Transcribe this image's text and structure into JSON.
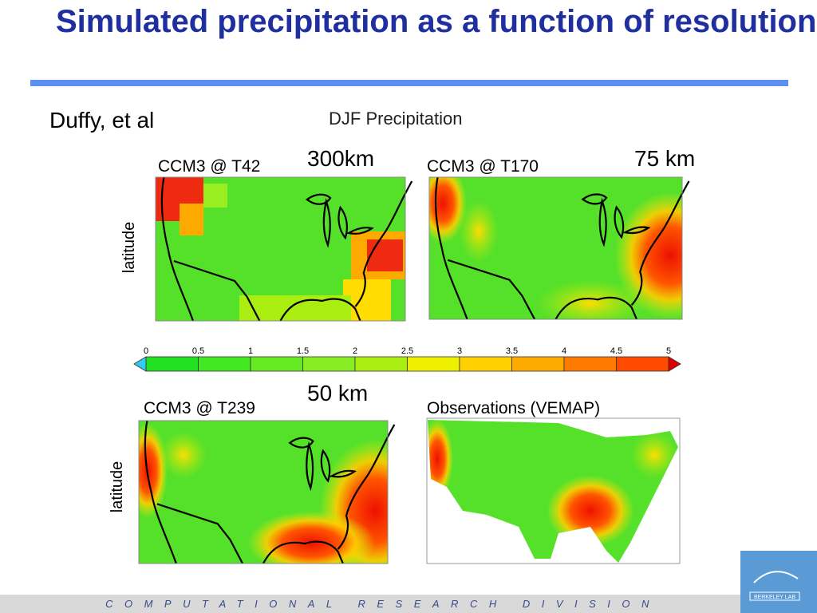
{
  "header": {
    "title": "Simulated precipitation as a function of resolution",
    "author": "Duffy, et al"
  },
  "figure": {
    "title": "DJF Precipitation",
    "panels": [
      {
        "title": "CCM3 @ T42",
        "resolution": "300km",
        "ylabel": "latitude"
      },
      {
        "title": "CCM3 @ T170",
        "resolution": "75 km"
      },
      {
        "title": "CCM3 @ T239",
        "resolution": "50 km",
        "ylabel": "latitude"
      },
      {
        "title": "Observations (VEMAP)"
      }
    ],
    "colorbar": {
      "ticks": [
        0,
        0.5,
        1,
        1.5,
        2,
        2.5,
        3,
        3.5,
        4,
        4.5,
        5
      ],
      "colors": [
        "#22e022",
        "#44e822",
        "#66ea22",
        "#88ec22",
        "#aaee11",
        "#eef000",
        "#ffd000",
        "#ffaa00",
        "#ff7a00",
        "#ff4a00"
      ],
      "under_color": "#33ccee",
      "over_color": "#dd0000"
    }
  },
  "footer": {
    "division": "COMPUTATIONAL RESEARCH DIVISION",
    "logo": "BERKELEY LAB"
  }
}
